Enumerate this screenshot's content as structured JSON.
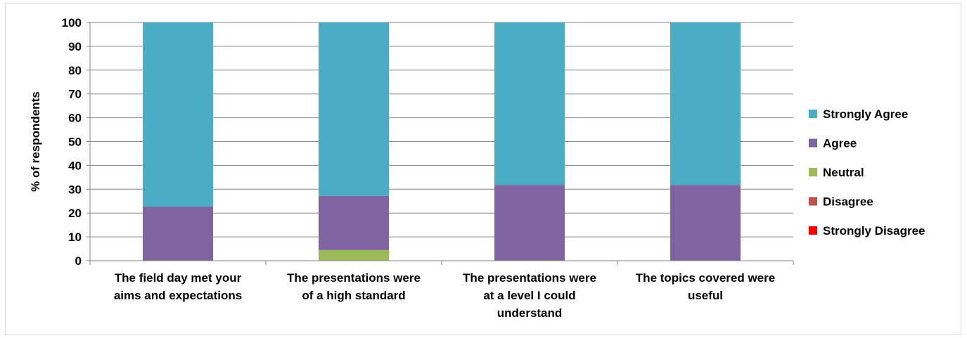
{
  "chart_data": {
    "type": "bar",
    "stacked": true,
    "ylabel": "% of respondents",
    "xlabel": "",
    "ylim": [
      0,
      100
    ],
    "yticks": [
      0,
      10,
      20,
      30,
      40,
      50,
      60,
      70,
      80,
      90,
      100
    ],
    "grid": "horizontal major gridlines",
    "legend_position": "right",
    "categories": [
      [
        "The field day met your",
        "aims and expectations"
      ],
      [
        "The presentations were",
        "of a high standard"
      ],
      [
        "The presentations were",
        "at a level I could",
        "understand"
      ],
      [
        "The topics covered were",
        "useful"
      ]
    ],
    "series": [
      {
        "name": "Strongly Disagree",
        "color": "#ff0000",
        "values": [
          0,
          0,
          0,
          0
        ]
      },
      {
        "name": "Disagree",
        "color": "#c0504d",
        "values": [
          0,
          0,
          0,
          0
        ]
      },
      {
        "name": "Neutral",
        "color": "#9bbb59",
        "values": [
          0,
          4.5,
          0,
          0
        ]
      },
      {
        "name": "Agree",
        "color": "#8064a2",
        "values": [
          22.7,
          22.7,
          31.8,
          31.8
        ]
      },
      {
        "name": "Strongly Agree",
        "color": "#4bacc6",
        "values": [
          77.3,
          72.8,
          68.2,
          68.2
        ]
      }
    ],
    "legend_order": [
      "Strongly Agree",
      "Agree",
      "Neutral",
      "Disagree",
      "Strongly Disagree"
    ]
  }
}
